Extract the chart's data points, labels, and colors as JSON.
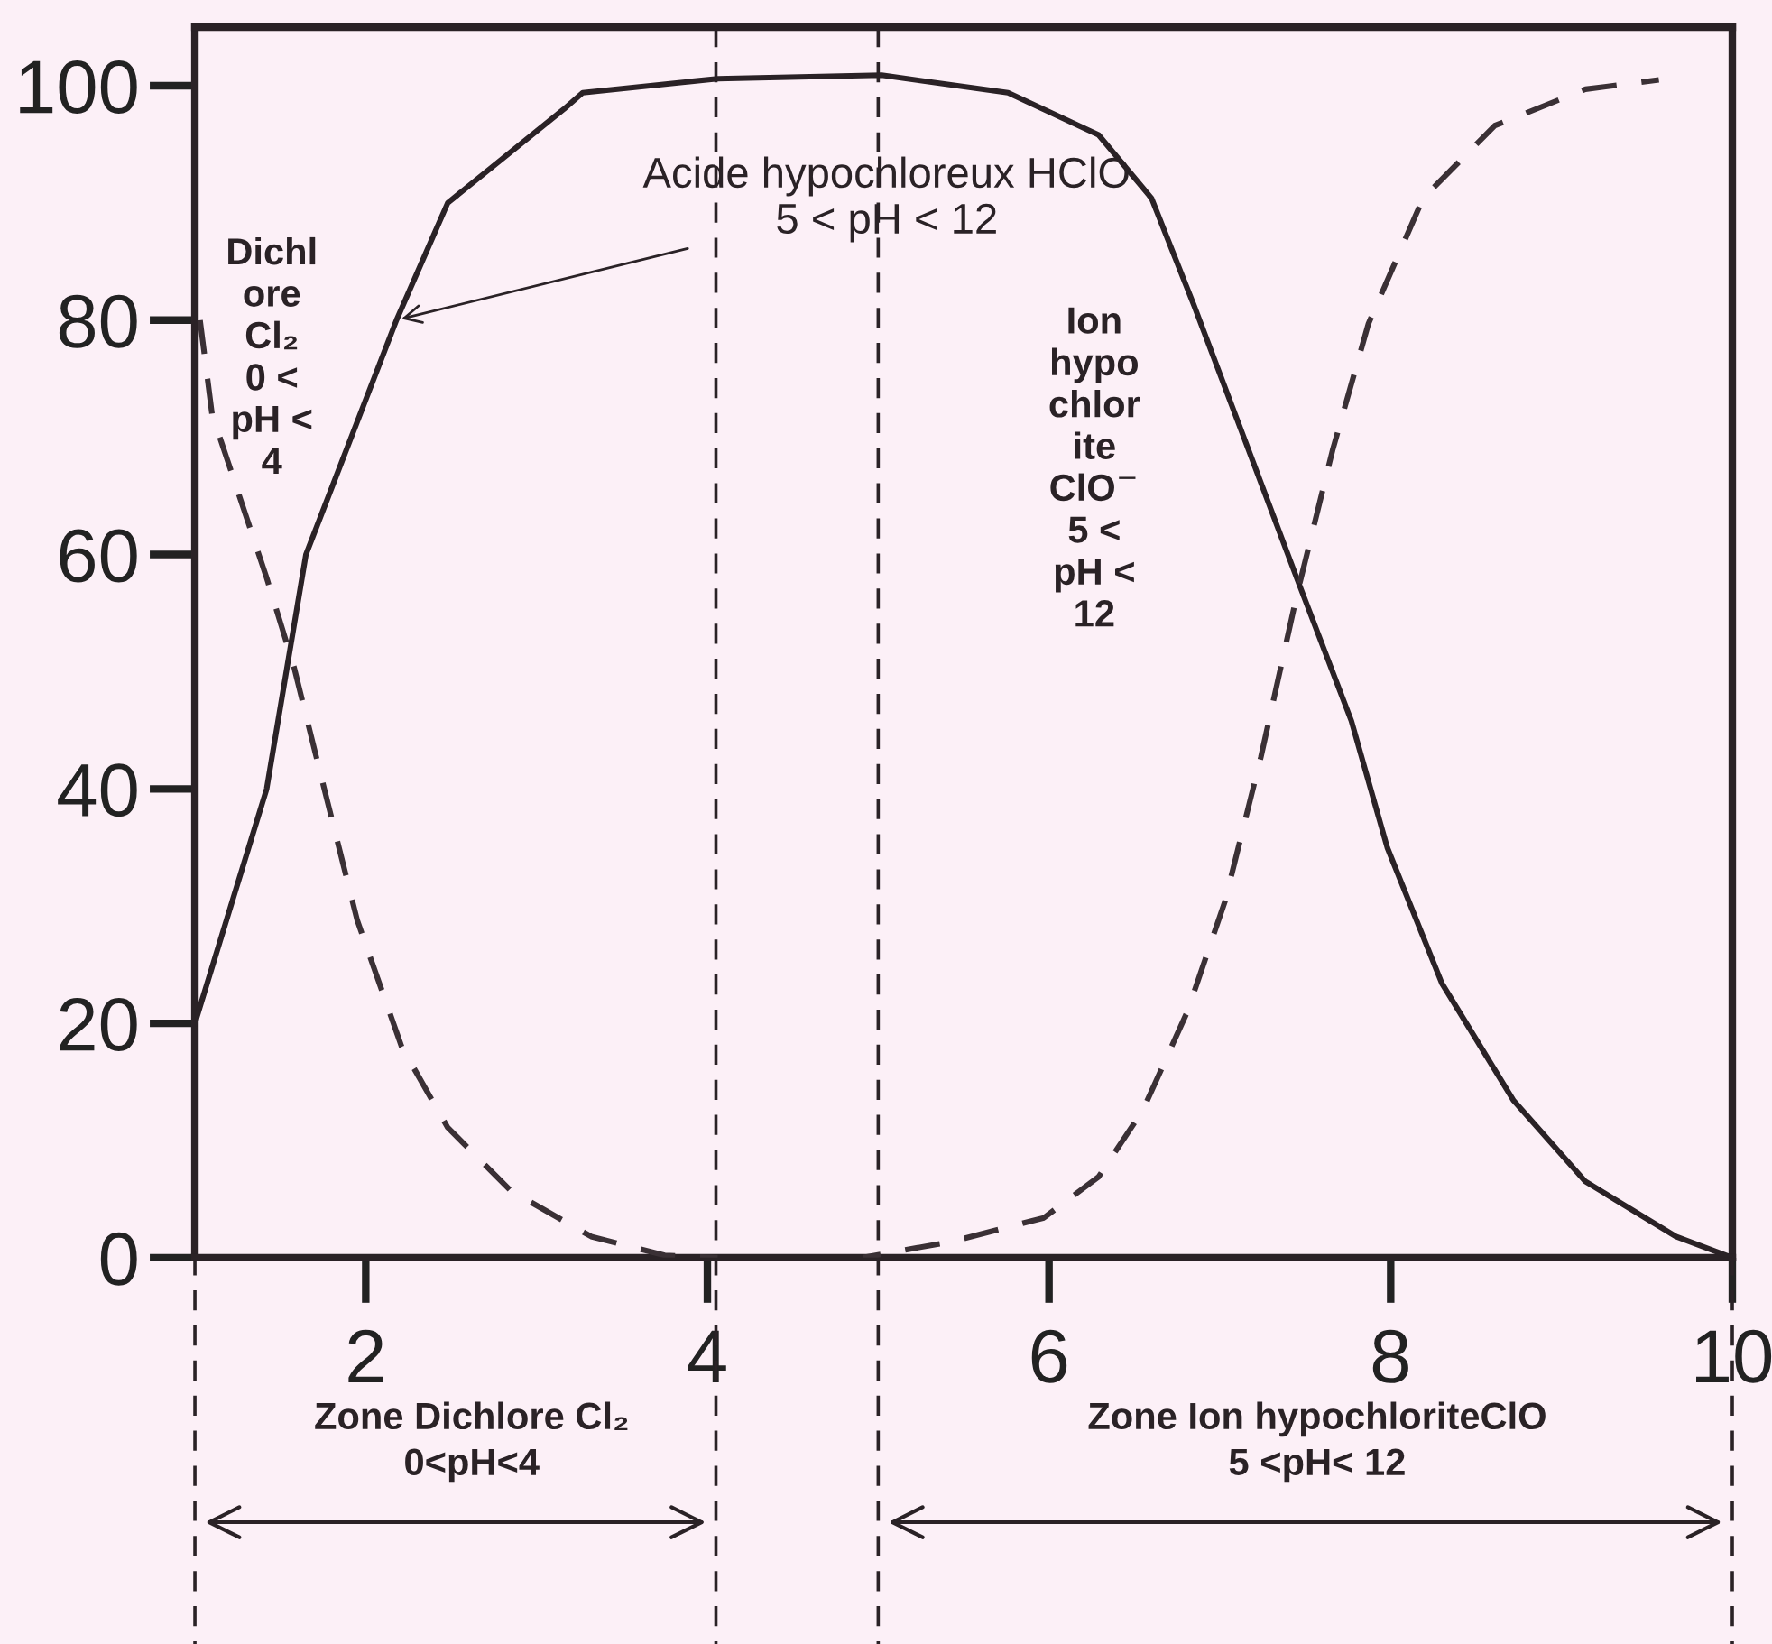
{
  "chart_data": {
    "type": "line",
    "xlim": [
      1,
      10
    ],
    "ylim": [
      0,
      105
    ],
    "xticks": [
      2,
      4,
      6,
      8,
      10
    ],
    "yticks": [
      0,
      20,
      40,
      60,
      80,
      100
    ],
    "grid": false,
    "legend": false,
    "marker": "none",
    "series": [
      {
        "color": "#2a2226",
        "line_style": "solid",
        "x": [
          1,
          1.42,
          1.65,
          2.18,
          2.48,
          3.16,
          3.27,
          4.06,
          5.02,
          5.76,
          6.29,
          6.6,
          6.85,
          7.13,
          7.45,
          7.77,
          7.98,
          8.3,
          8.72,
          9.14,
          9.67,
          10
        ],
        "values": [
          20,
          40,
          60,
          80,
          90,
          98,
          99.4,
          100.6,
          100.9,
          99.4,
          95.8,
          90.4,
          81.2,
          70.4,
          58,
          45.8,
          35,
          23.4,
          13.4,
          6.5,
          1.8,
          0
        ]
      },
      {
        "color": "#3a3035",
        "line_style": "dashed",
        "x": [
          1.03,
          1.1,
          1.42,
          1.58,
          1.74,
          1.95,
          2.21,
          2.48,
          2.85,
          3.32,
          3.75,
          4.06
        ],
        "values": [
          80,
          72,
          58,
          50.4,
          41,
          28.8,
          18,
          11.1,
          5.7,
          1.8,
          0.2,
          0
        ]
      },
      {
        "color": "#3a3035",
        "line_style": "dashed",
        "x": [
          4.91,
          5.44,
          5.97,
          6.29,
          6.55,
          6.81,
          7.03,
          7.24,
          7.45,
          7.66,
          7.87,
          8.19,
          8.61,
          9.14,
          9.57
        ],
        "values": [
          0,
          1.4,
          3.4,
          6.9,
          12.6,
          21,
          30.4,
          42.7,
          56.5,
          68.9,
          79.7,
          90.4,
          96.6,
          99.7,
          100.5
        ]
      }
    ],
    "ref_lines": [
      {
        "axis": "x",
        "value": 1,
        "line_style": "dashed",
        "color": "#2a2226"
      },
      {
        "axis": "x",
        "value": 4.05,
        "line_style": "dashed",
        "color": "#2a2226"
      },
      {
        "axis": "x",
        "value": 5,
        "line_style": "dashed",
        "color": "#2a2226"
      },
      {
        "axis": "x",
        "value": 10,
        "line_style": "dashed",
        "color": "#2a2226"
      }
    ],
    "annotations": [
      {
        "text": "Acide hypochloreux HClO\n5 < pH < 12",
        "x": 2.18,
        "y": 80
      },
      "Dichl\nore\nCl₂\n0 <\npH <\n4",
      "Ion\nhypo\nchlor\nite\nClO$^{−}$\n5 <\npH <\n12",
      "Zone Dichlore Cl₂\n0<pH<4",
      "Zone Ion hypochloriteClO\n5 <pH< 12"
    ]
  }
}
